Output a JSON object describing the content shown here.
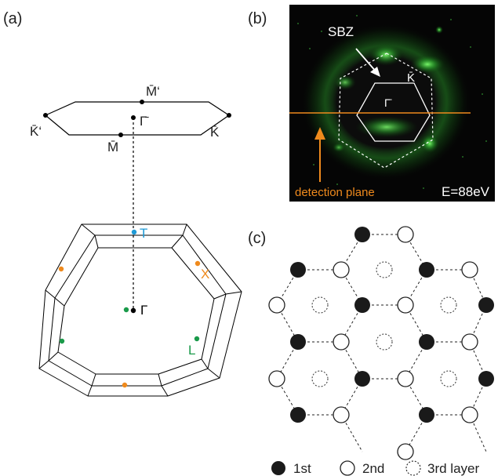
{
  "panels": {
    "a": {
      "label": "(a)"
    },
    "b": {
      "label": "(b)"
    },
    "c": {
      "label": "(c)"
    }
  },
  "surface_bz": {
    "points": {
      "M_bar_prime": "M̄‘",
      "Gamma_bar": "Γ̄",
      "K_bar_prime": "K̄‘",
      "K_bar": "K̄",
      "M_bar": "M̄"
    }
  },
  "bulk_bz": {
    "points": {
      "T": "T",
      "X": "X",
      "Gamma": "Γ",
      "L": "L"
    },
    "colors": {
      "T": "#1f9ad6",
      "X": "#ef8a1d",
      "L": "#1a9a4a",
      "Gamma": "#000000"
    }
  },
  "photo": {
    "sbz_label": "SBZ",
    "K_bar": "K̄",
    "Gamma_bar": "Γ̄",
    "detection_plane": "detection plane",
    "energy": "E=88eV",
    "colors": {
      "detection": "#ef8a1d",
      "background": "#050505",
      "glow": "#3fd13f"
    }
  },
  "lattice": {
    "legend": {
      "first": "1st",
      "second": "2nd",
      "third": "3rd layer"
    }
  }
}
